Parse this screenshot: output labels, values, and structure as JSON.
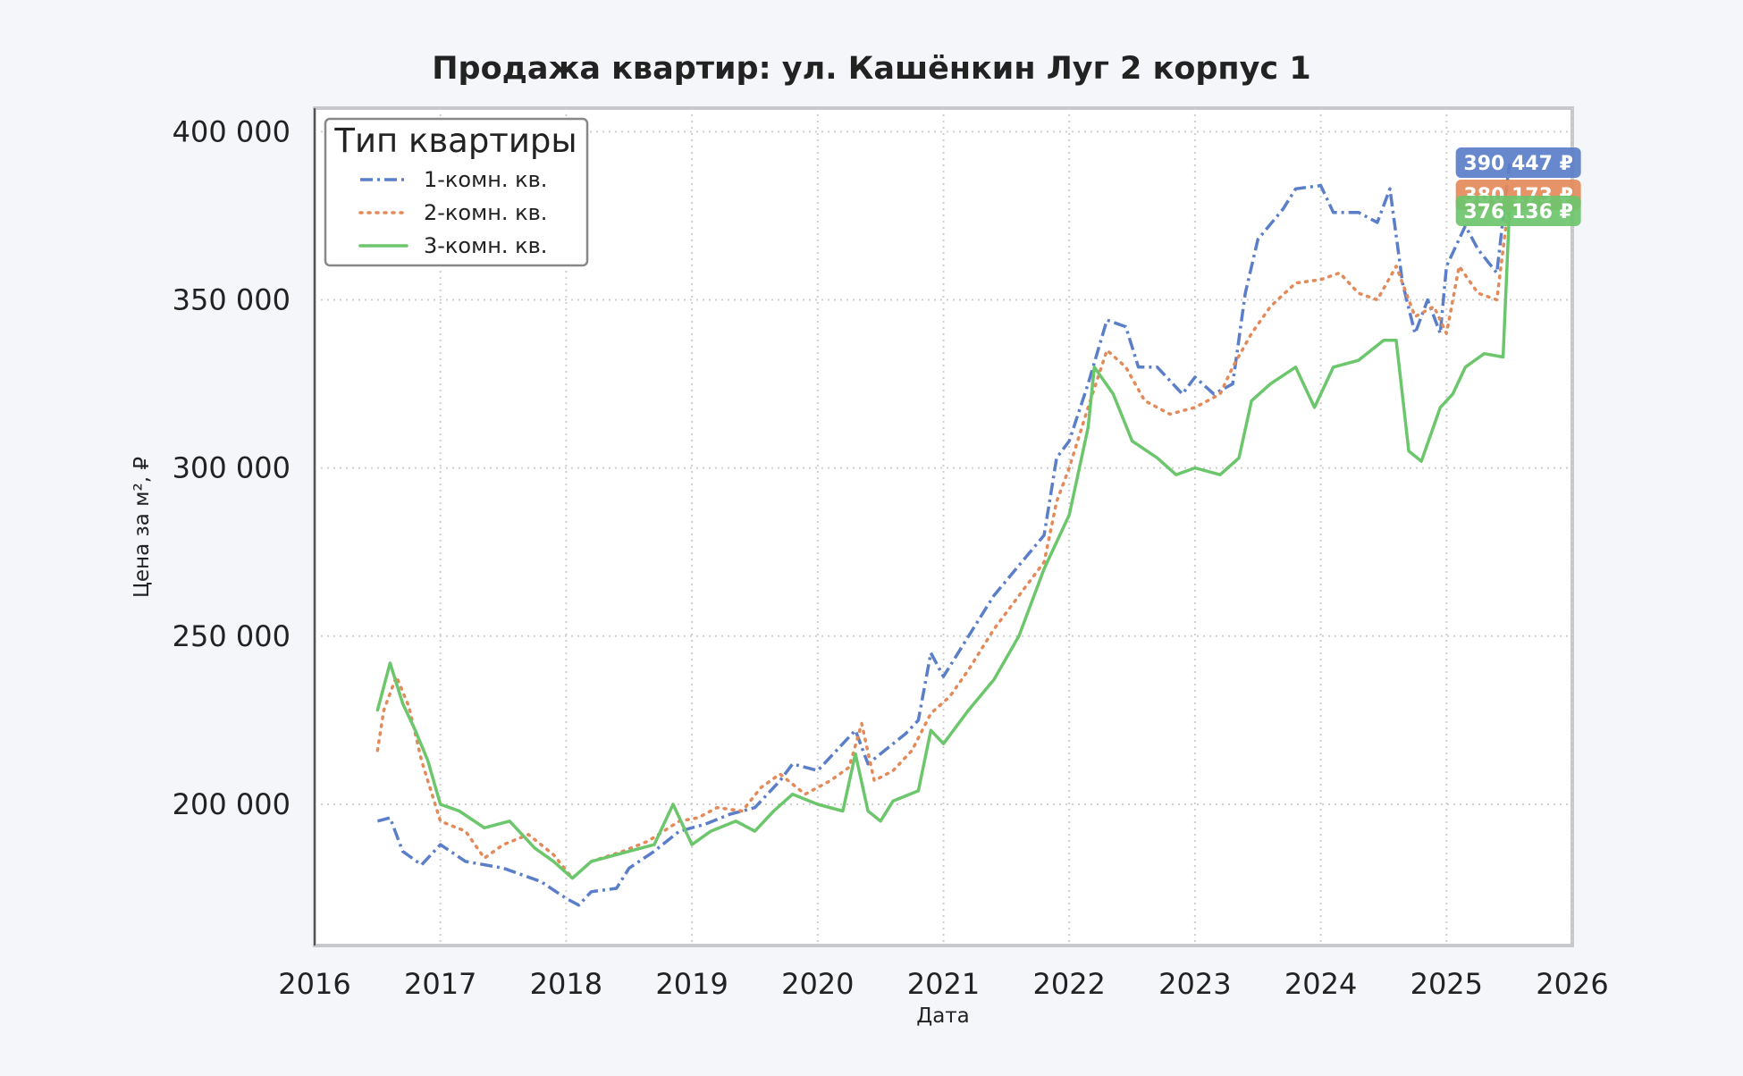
{
  "chart_data": {
    "type": "line",
    "title": "Продажа квартир: ул. Кашёнкин Луг 2 корпус 1",
    "xlabel": "Дата",
    "ylabel": "Цена за м², ₽",
    "xlim": [
      2016,
      2026
    ],
    "ylim": [
      158000,
      407000
    ],
    "x_ticks": [
      2016,
      2017,
      2018,
      2019,
      2020,
      2021,
      2022,
      2023,
      2024,
      2025,
      2026
    ],
    "x_tick_labels": [
      "2016",
      "2017",
      "2018",
      "2019",
      "2020",
      "2021",
      "2022",
      "2023",
      "2024",
      "2025",
      "2026"
    ],
    "y_ticks": [
      200000,
      250000,
      300000,
      350000,
      400000
    ],
    "y_tick_labels": [
      "200 000",
      "250 000",
      "300 000",
      "350 000",
      "400 000"
    ],
    "grid": true,
    "legend": {
      "title": "Тип квартиры",
      "position": "top-left"
    },
    "series": [
      {
        "name": "1-комн. кв.",
        "color": "#5b7ec9",
        "style": "dashdot",
        "end_label": "390 447 ₽",
        "points": [
          [
            2016.5,
            195000
          ],
          [
            2016.6,
            196000
          ],
          [
            2016.7,
            186000
          ],
          [
            2016.85,
            182000
          ],
          [
            2017.0,
            188000
          ],
          [
            2017.2,
            183000
          ],
          [
            2017.5,
            181000
          ],
          [
            2017.8,
            177000
          ],
          [
            2018.0,
            172000
          ],
          [
            2018.1,
            170000
          ],
          [
            2018.2,
            174000
          ],
          [
            2018.4,
            175000
          ],
          [
            2018.5,
            181000
          ],
          [
            2018.7,
            186000
          ],
          [
            2018.9,
            192000
          ],
          [
            2019.1,
            194000
          ],
          [
            2019.3,
            197000
          ],
          [
            2019.5,
            199000
          ],
          [
            2019.7,
            207000
          ],
          [
            2019.8,
            212000
          ],
          [
            2020.0,
            210000
          ],
          [
            2020.2,
            218000
          ],
          [
            2020.3,
            222000
          ],
          [
            2020.4,
            212000
          ],
          [
            2020.5,
            215000
          ],
          [
            2020.7,
            221000
          ],
          [
            2020.8,
            225000
          ],
          [
            2020.9,
            245000
          ],
          [
            2021.0,
            238000
          ],
          [
            2021.2,
            250000
          ],
          [
            2021.4,
            262000
          ],
          [
            2021.6,
            271000
          ],
          [
            2021.8,
            280000
          ],
          [
            2021.9,
            303000
          ],
          [
            2022.0,
            308000
          ],
          [
            2022.15,
            325000
          ],
          [
            2022.3,
            344000
          ],
          [
            2022.45,
            342000
          ],
          [
            2022.55,
            330000
          ],
          [
            2022.7,
            330000
          ],
          [
            2022.9,
            322000
          ],
          [
            2023.0,
            327000
          ],
          [
            2023.15,
            322000
          ],
          [
            2023.3,
            325000
          ],
          [
            2023.4,
            352000
          ],
          [
            2023.5,
            368000
          ],
          [
            2023.7,
            377000
          ],
          [
            2023.8,
            383000
          ],
          [
            2024.0,
            384000
          ],
          [
            2024.1,
            376000
          ],
          [
            2024.3,
            376000
          ],
          [
            2024.45,
            373000
          ],
          [
            2024.55,
            383000
          ],
          [
            2024.65,
            355000
          ],
          [
            2024.75,
            340000
          ],
          [
            2024.85,
            350000
          ],
          [
            2024.95,
            340000
          ],
          [
            2025.0,
            360000
          ],
          [
            2025.15,
            372000
          ],
          [
            2025.25,
            365000
          ],
          [
            2025.4,
            358000
          ],
          [
            2025.5,
            390447
          ]
        ]
      },
      {
        "name": "2-комн. кв.",
        "color": "#e38a5a",
        "style": "dotted",
        "end_label": "380 173 ₽",
        "points": [
          [
            2016.5,
            216000
          ],
          [
            2016.55,
            228000
          ],
          [
            2016.65,
            238000
          ],
          [
            2016.75,
            229000
          ],
          [
            2016.85,
            213000
          ],
          [
            2017.0,
            195000
          ],
          [
            2017.2,
            192000
          ],
          [
            2017.35,
            184000
          ],
          [
            2017.5,
            188000
          ],
          [
            2017.7,
            191000
          ],
          [
            2017.9,
            185000
          ],
          [
            2018.05,
            178000
          ],
          [
            2018.2,
            183000
          ],
          [
            2018.45,
            186000
          ],
          [
            2018.65,
            189000
          ],
          [
            2018.9,
            195000
          ],
          [
            2019.05,
            196000
          ],
          [
            2019.2,
            199000
          ],
          [
            2019.4,
            198000
          ],
          [
            2019.55,
            205000
          ],
          [
            2019.7,
            209000
          ],
          [
            2019.9,
            203000
          ],
          [
            2020.1,
            207000
          ],
          [
            2020.25,
            211000
          ],
          [
            2020.35,
            224000
          ],
          [
            2020.45,
            207000
          ],
          [
            2020.6,
            210000
          ],
          [
            2020.75,
            216000
          ],
          [
            2020.9,
            227000
          ],
          [
            2021.05,
            232000
          ],
          [
            2021.2,
            240000
          ],
          [
            2021.4,
            252000
          ],
          [
            2021.6,
            262000
          ],
          [
            2021.8,
            272000
          ],
          [
            2021.9,
            290000
          ],
          [
            2022.0,
            300000
          ],
          [
            2022.15,
            318000
          ],
          [
            2022.3,
            335000
          ],
          [
            2022.45,
            330000
          ],
          [
            2022.6,
            320000
          ],
          [
            2022.8,
            316000
          ],
          [
            2023.0,
            318000
          ],
          [
            2023.2,
            322000
          ],
          [
            2023.3,
            330000
          ],
          [
            2023.45,
            340000
          ],
          [
            2023.6,
            348000
          ],
          [
            2023.8,
            355000
          ],
          [
            2024.0,
            356000
          ],
          [
            2024.15,
            358000
          ],
          [
            2024.3,
            352000
          ],
          [
            2024.45,
            350000
          ],
          [
            2024.6,
            360000
          ],
          [
            2024.75,
            345000
          ],
          [
            2024.9,
            348000
          ],
          [
            2025.0,
            340000
          ],
          [
            2025.1,
            360000
          ],
          [
            2025.25,
            352000
          ],
          [
            2025.4,
            350000
          ],
          [
            2025.5,
            380173
          ]
        ]
      },
      {
        "name": "3-комн. кв.",
        "color": "#6cc66c",
        "style": "solid",
        "end_label": "376 136 ₽",
        "points": [
          [
            2016.5,
            228000
          ],
          [
            2016.6,
            242000
          ],
          [
            2016.7,
            230000
          ],
          [
            2016.8,
            222000
          ],
          [
            2016.9,
            213000
          ],
          [
            2017.0,
            200000
          ],
          [
            2017.15,
            198000
          ],
          [
            2017.35,
            193000
          ],
          [
            2017.55,
            195000
          ],
          [
            2017.75,
            187000
          ],
          [
            2017.9,
            183000
          ],
          [
            2018.05,
            178000
          ],
          [
            2018.2,
            183000
          ],
          [
            2018.5,
            186000
          ],
          [
            2018.7,
            188000
          ],
          [
            2018.85,
            200000
          ],
          [
            2019.0,
            188000
          ],
          [
            2019.15,
            192000
          ],
          [
            2019.35,
            195000
          ],
          [
            2019.5,
            192000
          ],
          [
            2019.65,
            198000
          ],
          [
            2019.8,
            203000
          ],
          [
            2020.0,
            200000
          ],
          [
            2020.2,
            198000
          ],
          [
            2020.3,
            215000
          ],
          [
            2020.4,
            198000
          ],
          [
            2020.5,
            195000
          ],
          [
            2020.6,
            201000
          ],
          [
            2020.8,
            204000
          ],
          [
            2020.9,
            222000
          ],
          [
            2021.0,
            218000
          ],
          [
            2021.2,
            228000
          ],
          [
            2021.4,
            237000
          ],
          [
            2021.6,
            250000
          ],
          [
            2021.8,
            270000
          ],
          [
            2022.0,
            286000
          ],
          [
            2022.15,
            312000
          ],
          [
            2022.2,
            330000
          ],
          [
            2022.35,
            322000
          ],
          [
            2022.5,
            308000
          ],
          [
            2022.7,
            303000
          ],
          [
            2022.85,
            298000
          ],
          [
            2023.0,
            300000
          ],
          [
            2023.2,
            298000
          ],
          [
            2023.35,
            303000
          ],
          [
            2023.45,
            320000
          ],
          [
            2023.6,
            325000
          ],
          [
            2023.8,
            330000
          ],
          [
            2023.95,
            318000
          ],
          [
            2024.1,
            330000
          ],
          [
            2024.3,
            332000
          ],
          [
            2024.5,
            338000
          ],
          [
            2024.6,
            338000
          ],
          [
            2024.7,
            305000
          ],
          [
            2024.8,
            302000
          ],
          [
            2024.95,
            318000
          ],
          [
            2025.05,
            322000
          ],
          [
            2025.15,
            330000
          ],
          [
            2025.3,
            334000
          ],
          [
            2025.45,
            333000
          ],
          [
            2025.5,
            376136
          ]
        ]
      }
    ]
  }
}
